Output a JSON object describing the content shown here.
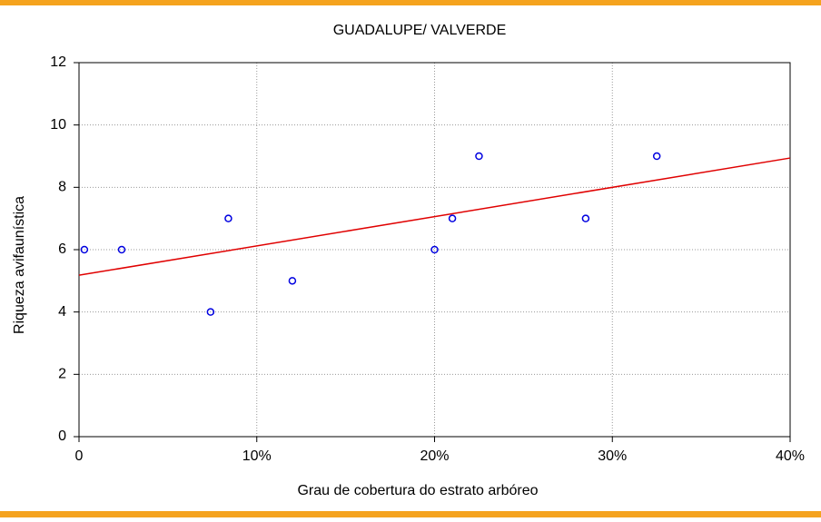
{
  "chart_data": {
    "type": "scatter",
    "title": "GUADALUPE/ VALVERDE",
    "x_label": "Grau de cobertura do estrato arbóreo",
    "y_label": "Riqueza avifaunística",
    "x": [
      0.3,
      2.4,
      7.4,
      8.4,
      12,
      20,
      21,
      22.5,
      28.5,
      32.5
    ],
    "values": [
      6,
      6,
      4,
      7,
      5,
      6,
      7,
      9,
      7,
      9
    ],
    "color": "#0000e0",
    "regression_line": {
      "x": [
        0,
        40
      ],
      "y": [
        5.18,
        8.94
      ],
      "color": "#e00000"
    },
    "xlim": [
      0,
      40
    ],
    "xticks": [
      0,
      {
        "value": 10,
        "label": "10%"
      },
      {
        "value": 20,
        "label": "20%"
      },
      {
        "value": 30,
        "label": "30%"
      },
      {
        "value": 40,
        "label": "40%"
      }
    ],
    "ylim": [
      0,
      12
    ],
    "yticks": [
      0,
      2,
      4,
      6,
      8,
      10,
      12
    ],
    "grid": true
  }
}
